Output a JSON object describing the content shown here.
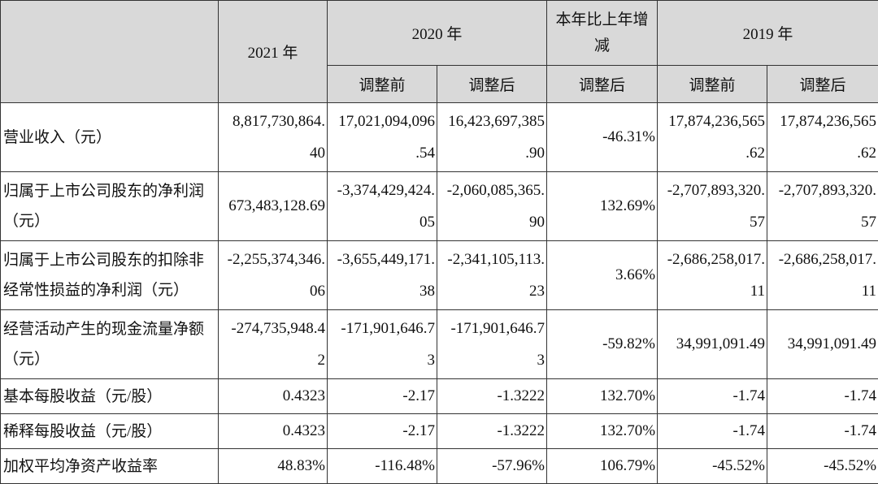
{
  "header": {
    "year_2021": "2021 年",
    "year_2020": "2020 年",
    "change": "本年比上年增减",
    "year_2019": "2019 年",
    "before_adj": "调整前",
    "after_adj": "调整后"
  },
  "rows": [
    {
      "label": "营业收入（元）",
      "v2021": "8,817,730,864.\n40",
      "v2020_before": "17,021,094,096\n.54",
      "v2020_after": "16,423,697,385\n.90",
      "change": "-46.31%",
      "v2019_before": "17,874,236,565\n.62",
      "v2019_after": "17,874,236,565\n.62"
    },
    {
      "label": "归属于上市公司股东的净利润（元）",
      "v2021": "673,483,128.69",
      "v2020_before": "-3,374,429,424.\n05",
      "v2020_after": "-2,060,085,365.\n90",
      "change": "132.69%",
      "v2019_before": "-2,707,893,320.\n57",
      "v2019_after": "-2,707,893,320.\n57"
    },
    {
      "label": "归属于上市公司股东的扣除非经常性损益的净利润（元）",
      "v2021": "-2,255,374,346.\n06",
      "v2020_before": "-3,655,449,171.\n38",
      "v2020_after": "-2,341,105,113.\n23",
      "change": "3.66%",
      "v2019_before": "-2,686,258,017.\n11",
      "v2019_after": "-2,686,258,017.\n11"
    },
    {
      "label": "经营活动产生的现金流量净额（元）",
      "v2021": "-274,735,948.4\n2",
      "v2020_before": "-171,901,646.7\n3",
      "v2020_after": "-171,901,646.7\n3",
      "change": "-59.82%",
      "v2019_before": "34,991,091.49",
      "v2019_after": "34,991,091.49"
    },
    {
      "label": "基本每股收益（元/股）",
      "v2021": "0.4323",
      "v2020_before": "-2.17",
      "v2020_after": "-1.3222",
      "change": "132.70%",
      "v2019_before": "-1.74",
      "v2019_after": "-1.74"
    },
    {
      "label": "稀释每股收益（元/股）",
      "v2021": "0.4323",
      "v2020_before": "-2.17",
      "v2020_after": "-1.3222",
      "change": "132.70%",
      "v2019_before": "-1.74",
      "v2019_after": "-1.74"
    },
    {
      "label": "加权平均净资产收益率",
      "v2021": "48.83%",
      "v2020_before": "-116.48%",
      "v2020_after": "-57.96%",
      "change": "106.79%",
      "v2019_before": "-45.52%",
      "v2019_after": "-45.52%"
    }
  ]
}
